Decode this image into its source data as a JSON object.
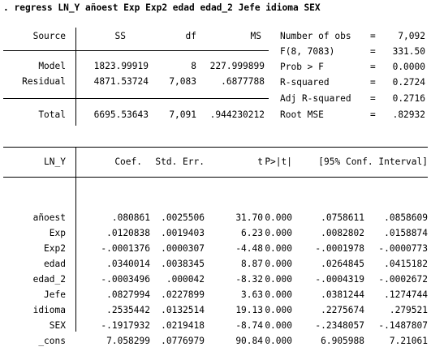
{
  "command": ". regress LN_Y añoest Exp Exp2 edad edad_2 Jefe idioma SEX",
  "anova": {
    "headers": {
      "source": "Source",
      "ss": "SS",
      "df": "df",
      "ms": "MS"
    },
    "rows": [
      {
        "source": "Model",
        "ss": "1823.99919",
        "df": "8",
        "ms": "227.999899"
      },
      {
        "source": "Residual",
        "ss": "4871.53724",
        "df": "7,083",
        "ms": ".6877788"
      }
    ],
    "total": {
      "source": "Total",
      "ss": "6695.53643",
      "df": "7,091",
      "ms": ".944230212"
    }
  },
  "stats": [
    {
      "label": "Number of obs",
      "eq": "=",
      "value": "7,092"
    },
    {
      "label": "F(8, 7083)",
      "eq": "=",
      "value": "331.50"
    },
    {
      "label": "Prob > F",
      "eq": "=",
      "value": "0.0000"
    },
    {
      "label": "R-squared",
      "eq": "=",
      "value": "0.2724"
    },
    {
      "label": "Adj R-squared",
      "eq": "=",
      "value": "0.2716"
    },
    {
      "label": "Root MSE",
      "eq": "=",
      "value": ".82932"
    }
  ],
  "coef": {
    "headers": {
      "var": "LN_Y",
      "coef": "Coef.",
      "se": "Std. Err.",
      "t": "t",
      "p": "P>|t|",
      "ci": "[95% Conf. Interval]"
    },
    "rows": [
      {
        "var": "añoest",
        "coef": ".080861",
        "se": ".0025506",
        "t": "31.70",
        "p": "0.000",
        "lo": ".0758611",
        "hi": ".0858609"
      },
      {
        "var": "Exp",
        "coef": ".0120838",
        "se": ".0019403",
        "t": "6.23",
        "p": "0.000",
        "lo": ".0082802",
        "hi": ".0158874"
      },
      {
        "var": "Exp2",
        "coef": "-.0001376",
        "se": ".0000307",
        "t": "-4.48",
        "p": "0.000",
        "lo": "-.0001978",
        "hi": "-.0000773"
      },
      {
        "var": "edad",
        "coef": ".0340014",
        "se": ".0038345",
        "t": "8.87",
        "p": "0.000",
        "lo": ".0264845",
        "hi": ".0415182"
      },
      {
        "var": "edad_2",
        "coef": "-.0003496",
        "se": ".000042",
        "t": "-8.32",
        "p": "0.000",
        "lo": "-.0004319",
        "hi": "-.0002672"
      },
      {
        "var": "Jefe",
        "coef": ".0827994",
        "se": ".0227899",
        "t": "3.63",
        "p": "0.000",
        "lo": ".0381244",
        "hi": ".1274744"
      },
      {
        "var": "idioma",
        "coef": ".2535442",
        "se": ".0132514",
        "t": "19.13",
        "p": "0.000",
        "lo": ".2275674",
        "hi": ".279521"
      },
      {
        "var": "SEX",
        "coef": "-.1917932",
        "se": ".0219418",
        "t": "-8.74",
        "p": "0.000",
        "lo": "-.2348057",
        "hi": "-.1487807"
      },
      {
        "var": "_cons",
        "coef": "7.058299",
        "se": ".0776979",
        "t": "90.84",
        "p": "0.000",
        "lo": "6.905988",
        "hi": "7.21061"
      }
    ]
  }
}
